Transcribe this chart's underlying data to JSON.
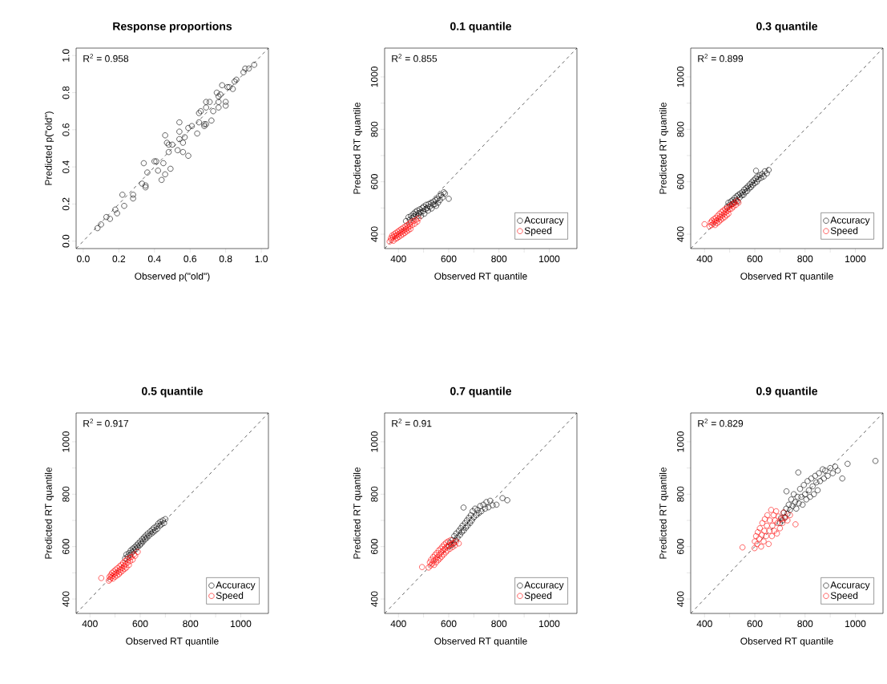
{
  "chart_data": [
    {
      "type": "scatter",
      "title": "Response proportions",
      "xlabel": "Observed p(\"old\")",
      "ylabel": "Predicted p(\"old\")",
      "xlim": [
        -0.04,
        1.04
      ],
      "ylim": [
        -0.04,
        1.04
      ],
      "xticks": [
        {
          "value": 0,
          "label": "0.0"
        },
        0.2,
        0.4,
        0.6,
        0.8,
        {
          "value": 1,
          "label": "1.0"
        }
      ],
      "yticks": [
        {
          "value": 0,
          "label": "0.0"
        },
        0.2,
        0.4,
        0.6,
        0.8,
        {
          "value": 1,
          "label": "1.0"
        }
      ],
      "marker": "circle",
      "annotations": [
        "R$^{2}$ = 0.958"
      ],
      "series": [
        {
          "color": "#000000",
          "x": [
            0.08,
            0.1,
            0.13,
            0.15,
            0.18,
            0.19,
            0.22,
            0.23,
            0.28,
            0.28,
            0.34,
            0.36,
            0.33,
            0.35,
            0.35,
            0.41,
            0.4,
            0.45,
            0.42,
            0.46,
            0.44,
            0.49,
            0.46,
            0.47,
            0.48,
            0.48,
            0.5,
            0.53,
            0.54,
            0.54,
            0.54,
            0.56,
            0.57,
            0.56,
            0.59,
            0.59,
            0.61,
            0.64,
            0.65,
            0.65,
            0.66,
            0.68,
            0.68,
            0.69,
            0.69,
            0.72,
            0.73,
            0.69,
            0.71,
            0.75,
            0.76,
            0.76,
            0.77,
            0.76,
            0.8,
            0.8,
            0.78,
            0.81,
            0.82,
            0.84,
            0.85,
            0.86,
            0.9,
            0.91,
            0.93,
            0.96
          ],
          "values": [
            0.07,
            0.09,
            0.13,
            0.12,
            0.17,
            0.15,
            0.25,
            0.19,
            0.25,
            0.23,
            0.42,
            0.37,
            0.31,
            0.29,
            0.3,
            0.43,
            0.43,
            0.42,
            0.38,
            0.36,
            0.33,
            0.39,
            0.57,
            0.53,
            0.48,
            0.52,
            0.52,
            0.49,
            0.64,
            0.59,
            0.55,
            0.53,
            0.56,
            0.48,
            0.46,
            0.61,
            0.62,
            0.58,
            0.64,
            0.69,
            0.7,
            0.63,
            0.62,
            0.63,
            0.72,
            0.65,
            0.7,
            0.75,
            0.75,
            0.8,
            0.78,
            0.75,
            0.79,
            0.72,
            0.73,
            0.75,
            0.84,
            0.83,
            0.83,
            0.82,
            0.86,
            0.87,
            0.91,
            0.93,
            0.93,
            0.95
          ]
        },
        {
          "type": "line",
          "line_style": "dashed",
          "marker": "none",
          "color": "#000000",
          "x": [
            -0.04,
            1.04
          ],
          "values": [
            -0.04,
            1.04
          ]
        }
      ]
    },
    {
      "type": "scatter",
      "title": "0.1 quantile",
      "xlabel": "Observed RT quantile",
      "ylabel": "Predicted RT quantile",
      "xlim": [
        345,
        1110
      ],
      "ylim": [
        345,
        1110
      ],
      "xticks": [
        400,
        {
          "value": 500,
          "label": null
        },
        600,
        {
          "value": 700,
          "label": null
        },
        800,
        {
          "value": 900,
          "label": null
        },
        1000
      ],
      "yticks": [
        400,
        {
          "value": 500,
          "label": null
        },
        600,
        {
          "value": 700,
          "label": null
        },
        800,
        {
          "value": 900,
          "label": null
        },
        1000
      ],
      "marker": "circle",
      "legend": "bottom right",
      "annotations": [
        "R$^{2}$ = 0.855"
      ],
      "series": [
        {
          "name": "Accuracy",
          "color": "#000000",
          "x": [
            430,
            440,
            445,
            450,
            455,
            460,
            462,
            468,
            470,
            475,
            478,
            480,
            485,
            488,
            490,
            495,
            498,
            500,
            503,
            508,
            510,
            515,
            518,
            520,
            525,
            530,
            532,
            538,
            540,
            545,
            548,
            550,
            555,
            558,
            562,
            565,
            570,
            575,
            580,
            585,
            600
          ],
          "values": [
            450,
            465,
            455,
            470,
            462,
            478,
            468,
            485,
            475,
            490,
            470,
            480,
            495,
            483,
            470,
            500,
            488,
            505,
            478,
            495,
            512,
            500,
            490,
            515,
            505,
            520,
            498,
            512,
            525,
            515,
            530,
            508,
            535,
            520,
            545,
            530,
            550,
            540,
            560,
            555,
            535
          ]
        },
        {
          "name": "Speed",
          "color": "#ff0000",
          "x": [
            365,
            370,
            372,
            375,
            378,
            380,
            383,
            385,
            388,
            390,
            392,
            395,
            398,
            400,
            402,
            405,
            408,
            410,
            412,
            415,
            418,
            420,
            422,
            425,
            428,
            430,
            432,
            435,
            438,
            440,
            443,
            445,
            448,
            450,
            455,
            460,
            465,
            470,
            475,
            480
          ],
          "values": [
            372,
            385,
            378,
            395,
            388,
            375,
            400,
            392,
            382,
            405,
            395,
            385,
            410,
            400,
            390,
            415,
            405,
            395,
            420,
            410,
            400,
            425,
            415,
            405,
            430,
            420,
            410,
            435,
            425,
            415,
            440,
            430,
            420,
            445,
            435,
            450,
            440,
            455,
            448,
            460
          ]
        },
        {
          "type": "line",
          "line_style": "dashed",
          "marker": "none",
          "color": "#000000",
          "x": [
            345,
            1110
          ],
          "values": [
            345,
            1110
          ]
        }
      ]
    },
    {
      "type": "scatter",
      "title": "0.3 quantile",
      "xlabel": "Observed RT quantile",
      "ylabel": "Predicted RT quantile",
      "xlim": [
        345,
        1110
      ],
      "ylim": [
        345,
        1110
      ],
      "xticks": [
        400,
        {
          "value": 500,
          "label": null
        },
        600,
        {
          "value": 700,
          "label": null
        },
        800,
        {
          "value": 900,
          "label": null
        },
        1000
      ],
      "yticks": [
        400,
        {
          "value": 500,
          "label": null
        },
        600,
        {
          "value": 700,
          "label": null
        },
        800,
        {
          "value": 900,
          "label": null
        },
        1000
      ],
      "marker": "circle",
      "legend": "bottom right",
      "annotations": [
        "R$^{2}$ = 0.899"
      ],
      "series": [
        {
          "name": "Accuracy",
          "color": "#000000",
          "x": [
            490,
            495,
            500,
            505,
            510,
            512,
            518,
            520,
            525,
            528,
            532,
            535,
            540,
            542,
            548,
            550,
            555,
            558,
            562,
            565,
            570,
            572,
            578,
            580,
            585,
            588,
            592,
            595,
            600,
            603,
            608,
            610,
            615,
            620,
            625,
            630,
            635,
            640,
            648,
            655,
            605
          ],
          "values": [
            505,
            520,
            512,
            525,
            515,
            530,
            522,
            538,
            530,
            545,
            525,
            550,
            540,
            555,
            548,
            560,
            550,
            570,
            560,
            575,
            565,
            582,
            575,
            590,
            580,
            598,
            588,
            605,
            595,
            612,
            600,
            620,
            610,
            625,
            615,
            630,
            620,
            640,
            632,
            645,
            642
          ]
        },
        {
          "name": "Speed",
          "color": "#ff0000",
          "x": [
            400,
            420,
            425,
            428,
            430,
            435,
            438,
            440,
            442,
            445,
            448,
            450,
            452,
            455,
            458,
            460,
            462,
            465,
            468,
            470,
            472,
            475,
            478,
            480,
            482,
            485,
            488,
            490,
            492,
            495,
            498,
            500,
            505,
            508,
            512,
            515,
            520,
            525,
            530,
            535
          ],
          "values": [
            438,
            430,
            445,
            435,
            452,
            440,
            458,
            448,
            435,
            462,
            452,
            442,
            470,
            458,
            448,
            478,
            465,
            455,
            485,
            472,
            460,
            490,
            478,
            465,
            495,
            485,
            472,
            500,
            490,
            478,
            505,
            495,
            510,
            498,
            515,
            505,
            520,
            512,
            528,
            520
          ]
        },
        {
          "type": "line",
          "line_style": "dashed",
          "marker": "none",
          "color": "#000000",
          "x": [
            345,
            1110
          ],
          "values": [
            345,
            1110
          ]
        }
      ]
    },
    {
      "type": "scatter",
      "title": "0.5 quantile",
      "xlabel": "Observed RT quantile",
      "ylabel": "Predicted RT quantile",
      "xlim": [
        345,
        1110
      ],
      "ylim": [
        345,
        1110
      ],
      "xticks": [
        400,
        {
          "value": 500,
          "label": null
        },
        600,
        {
          "value": 700,
          "label": null
        },
        800,
        {
          "value": 900,
          "label": null
        },
        1000
      ],
      "yticks": [
        400,
        {
          "value": 500,
          "label": null
        },
        600,
        {
          "value": 700,
          "label": null
        },
        800,
        {
          "value": 900,
          "label": null
        },
        1000
      ],
      "marker": "circle",
      "legend": "bottom right",
      "annotations": [
        "R$^{2}$ = 0.917"
      ],
      "series": [
        {
          "name": "Accuracy",
          "color": "#000000",
          "x": [
            540,
            545,
            550,
            555,
            560,
            562,
            568,
            570,
            575,
            578,
            582,
            585,
            590,
            592,
            598,
            600,
            605,
            608,
            612,
            615,
            620,
            622,
            628,
            630,
            635,
            640,
            645,
            648,
            652,
            655,
            660,
            665,
            668,
            672,
            678,
            680,
            685,
            690,
            695,
            700
          ],
          "values": [
            555,
            570,
            562,
            575,
            568,
            585,
            578,
            592,
            585,
            598,
            590,
            605,
            598,
            612,
            605,
            620,
            612,
            628,
            620,
            635,
            628,
            642,
            635,
            650,
            642,
            658,
            650,
            665,
            655,
            672,
            662,
            678,
            668,
            688,
            680,
            695,
            685,
            700,
            690,
            705
          ]
        },
        {
          "name": "Speed",
          "color": "#ff0000",
          "x": [
            445,
            475,
            478,
            480,
            483,
            485,
            488,
            490,
            492,
            495,
            498,
            500,
            502,
            505,
            508,
            510,
            512,
            515,
            518,
            520,
            522,
            525,
            528,
            530,
            532,
            535,
            538,
            540,
            542,
            545,
            548,
            550,
            555,
            558,
            560,
            565,
            570,
            575,
            580,
            590
          ],
          "values": [
            480,
            470,
            485,
            475,
            492,
            482,
            500,
            488,
            478,
            505,
            495,
            485,
            512,
            500,
            490,
            518,
            506,
            495,
            525,
            512,
            502,
            530,
            518,
            508,
            538,
            525,
            515,
            545,
            532,
            520,
            552,
            540,
            530,
            558,
            545,
            560,
            550,
            570,
            565,
            580
          ]
        },
        {
          "type": "line",
          "line_style": "dashed",
          "marker": "none",
          "color": "#000000",
          "x": [
            345,
            1110
          ],
          "values": [
            345,
            1110
          ]
        }
      ]
    },
    {
      "type": "scatter",
      "title": "0.7 quantile",
      "xlabel": "Observed RT quantile",
      "ylabel": "Predicted RT quantile",
      "xlim": [
        345,
        1110
      ],
      "ylim": [
        345,
        1110
      ],
      "xticks": [
        400,
        {
          "value": 500,
          "label": null
        },
        600,
        {
          "value": 700,
          "label": null
        },
        800,
        {
          "value": 900,
          "label": null
        },
        1000
      ],
      "yticks": [
        400,
        {
          "value": 500,
          "label": null
        },
        600,
        {
          "value": 700,
          "label": null
        },
        800,
        {
          "value": 900,
          "label": null
        },
        1000
      ],
      "marker": "circle",
      "legend": "bottom right",
      "annotations": [
        "R$^{2}$ = 0.91"
      ],
      "series": [
        {
          "name": "Accuracy",
          "color": "#000000",
          "x": [
            600,
            605,
            610,
            615,
            620,
            622,
            628,
            630,
            635,
            640,
            645,
            648,
            652,
            655,
            660,
            659,
            665,
            668,
            672,
            675,
            680,
            685,
            688,
            692,
            695,
            700,
            705,
            710,
            715,
            720,
            725,
            730,
            738,
            745,
            750,
            758,
            765,
            775,
            790,
            814,
            833
          ],
          "values": [
            600,
            615,
            605,
            625,
            612,
            640,
            625,
            650,
            635,
            660,
            645,
            670,
            655,
            680,
            662,
            749,
            690,
            672,
            700,
            680,
            710,
            690,
            720,
            700,
            735,
            712,
            745,
            720,
            740,
            728,
            755,
            735,
            760,
            745,
            770,
            750,
            775,
            758,
            760,
            785,
            777
          ]
        },
        {
          "name": "Speed",
          "color": "#ff0000",
          "x": [
            494,
            520,
            525,
            528,
            530,
            535,
            538,
            540,
            542,
            545,
            548,
            550,
            552,
            555,
            558,
            560,
            562,
            565,
            568,
            570,
            572,
            575,
            578,
            580,
            582,
            585,
            588,
            590,
            592,
            595,
            598,
            600,
            605,
            608,
            612,
            615,
            620,
            625,
            630,
            640
          ],
          "values": [
            522,
            520,
            540,
            528,
            550,
            535,
            560,
            545,
            530,
            568,
            552,
            540,
            575,
            560,
            548,
            585,
            568,
            555,
            592,
            578,
            562,
            600,
            585,
            570,
            608,
            592,
            578,
            615,
            600,
            585,
            620,
            605,
            592,
            625,
            610,
            598,
            615,
            605,
            620,
            612
          ]
        },
        {
          "type": "line",
          "line_style": "dashed",
          "marker": "none",
          "color": "#000000",
          "x": [
            345,
            1110
          ],
          "values": [
            345,
            1110
          ]
        }
      ]
    },
    {
      "type": "scatter",
      "title": "0.9 quantile",
      "xlabel": "Observed RT quantile",
      "ylabel": "Predicted RT quantile",
      "xlim": [
        345,
        1110
      ],
      "ylim": [
        345,
        1110
      ],
      "xticks": [
        400,
        {
          "value": 500,
          "label": null
        },
        600,
        {
          "value": 700,
          "label": null
        },
        800,
        {
          "value": 900,
          "label": null
        },
        1000
      ],
      "yticks": [
        400,
        {
          "value": 500,
          "label": null
        },
        600,
        {
          "value": 700,
          "label": null
        },
        800,
        {
          "value": 900,
          "label": null
        },
        1000
      ],
      "marker": "circle",
      "legend": "bottom right",
      "annotations": [
        "R$^{2}$ = 0.829"
      ],
      "series": [
        {
          "name": "Accuracy",
          "color": "#000000",
          "x": [
            700,
            705,
            710,
            715,
            720,
            725,
            726,
            730,
            735,
            740,
            745,
            750,
            755,
            760,
            765,
            770,
            773,
            775,
            780,
            785,
            790,
            795,
            800,
            805,
            810,
            815,
            820,
            825,
            830,
            835,
            840,
            845,
            850,
            855,
            860,
            870,
            875,
            880,
            890,
            900,
            910,
            920,
            930,
            948,
            969,
            1080
          ],
          "values": [
            690,
            710,
            700,
            730,
            712,
            745,
            811,
            725,
            760,
            740,
            780,
            755,
            800,
            770,
            745,
            790,
            883,
            765,
            820,
            790,
            760,
            835,
            800,
            780,
            850,
            815,
            790,
            860,
            830,
            800,
            870,
            845,
            815,
            880,
            850,
            895,
            860,
            890,
            870,
            900,
            880,
            905,
            890,
            860,
            916,
            927
          ]
        },
        {
          "name": "Speed",
          "color": "#ff0000",
          "x": [
            551,
            599,
            600,
            605,
            610,
            612,
            618,
            620,
            625,
            628,
            630,
            635,
            638,
            640,
            645,
            648,
            650,
            655,
            658,
            660,
            665,
            668,
            670,
            675,
            678,
            680,
            685,
            688,
            690,
            695,
            700,
            705,
            710,
            715,
            720,
            730,
            762,
            740
          ],
          "values": [
            597,
            594,
            620,
            640,
            610,
            655,
            630,
            670,
            600,
            645,
            690,
            620,
            660,
            705,
            640,
            680,
            720,
            610,
            660,
            700,
            740,
            640,
            680,
            720,
            660,
            700,
            735,
            650,
            690,
            715,
            670,
            705,
            690,
            730,
            710,
            700,
            685,
            720
          ]
        },
        {
          "type": "line",
          "line_style": "dashed",
          "marker": "none",
          "color": "#000000",
          "x": [
            345,
            1110
          ],
          "values": [
            345,
            1110
          ]
        }
      ]
    }
  ]
}
